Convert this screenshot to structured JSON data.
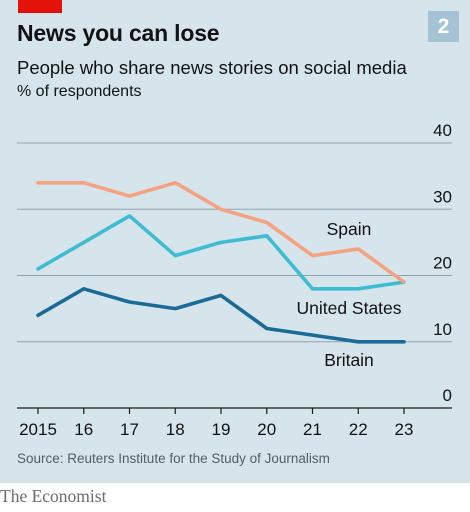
{
  "chart_number": "2",
  "title": "News you can lose",
  "subtitle": "People who share news stories on social media",
  "unit": "% of respondents",
  "source": "Source: Reuters Institute for the Study of Journalism",
  "brand": "The Economist",
  "colors": {
    "panel": "#d6e4ec",
    "brand_red": "#e3120b",
    "badge": "#a6c3d5",
    "Spain": "#f4a27f",
    "United States": "#3ebcd2",
    "Britain": "#1c6a96"
  },
  "chart_data": {
    "type": "line",
    "x": [
      "2015",
      "16",
      "17",
      "18",
      "19",
      "20",
      "21",
      "22",
      "23"
    ],
    "series": [
      {
        "name": "Spain",
        "values": [
          34,
          34,
          32,
          34,
          30,
          28,
          23,
          24,
          19
        ]
      },
      {
        "name": "United States",
        "values": [
          21,
          25,
          29,
          23,
          25,
          26,
          18,
          18,
          19
        ]
      },
      {
        "name": "Britain",
        "values": [
          14,
          18,
          16,
          15,
          17,
          12,
          11,
          10,
          10
        ]
      }
    ],
    "yticks": [
      "0",
      "10",
      "20",
      "30",
      "40"
    ],
    "ylim": [
      0,
      40
    ],
    "grid": true,
    "legend": "direct labels at right"
  }
}
